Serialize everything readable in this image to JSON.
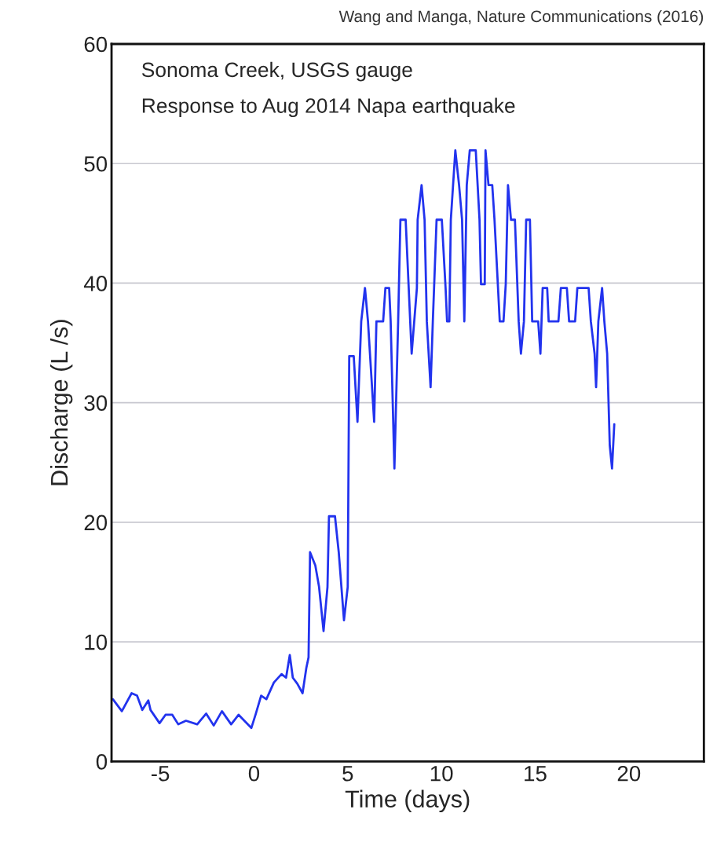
{
  "chart_data": {
    "type": "line",
    "xlabel": "Time (days)",
    "ylabel": "Discharge (L /s)",
    "annotations": [
      "Sonoma Creek, USGS gauge",
      "Response to Aug 2014 Napa earthquake",
      "Wang and Manga, Nature Communications (2016)"
    ],
    "xlim": [
      -7.6,
      24.0
    ],
    "ylim": [
      0,
      60
    ],
    "xticks": [
      -5,
      0,
      5,
      10,
      15,
      20
    ],
    "yticks": [
      0,
      10,
      20,
      30,
      40,
      50,
      60
    ],
    "grid": "y",
    "line_style": "solid",
    "series": [
      {
        "color": "#2233ee",
        "x": [
          -7.53,
          -7.05,
          -6.53,
          -6.24,
          -5.96,
          -5.64,
          -5.52,
          -5.04,
          -4.72,
          -4.36,
          -4.04,
          -3.63,
          -3.03,
          -2.55,
          -2.15,
          -1.71,
          -1.22,
          -0.82,
          -0.14,
          0.1,
          0.38,
          0.66,
          1.06,
          1.47,
          1.71,
          1.91,
          2.07,
          2.31,
          2.59,
          2.79,
          2.91,
          2.99,
          3.27,
          3.47,
          3.71,
          3.92,
          4.0,
          4.32,
          4.52,
          4.8,
          5.0,
          5.08,
          5.32,
          5.52,
          5.72,
          5.92,
          6.08,
          6.41,
          6.53,
          6.89,
          7.01,
          7.21,
          7.29,
          7.49,
          7.69,
          7.81,
          8.09,
          8.41,
          8.69,
          8.73,
          8.94,
          9.1,
          9.22,
          9.42,
          9.54,
          9.74,
          10.02,
          10.22,
          10.3,
          10.42,
          10.5,
          10.62,
          10.74,
          10.94,
          11.1,
          11.22,
          11.35,
          11.51,
          11.83,
          12.03,
          12.11,
          12.31,
          12.35,
          12.51,
          12.71,
          12.83,
          13.11,
          13.31,
          13.43,
          13.55,
          13.71,
          13.92,
          14.12,
          14.24,
          14.4,
          14.52,
          14.72,
          14.84,
          15.16,
          15.28,
          15.4,
          15.64,
          15.72,
          16.24,
          16.37,
          16.69,
          16.81,
          17.13,
          17.25,
          17.85,
          17.97,
          18.17,
          18.25,
          18.37,
          18.57,
          18.69,
          18.84,
          18.98,
          19.1,
          19.22
        ],
        "values": [
          5.2,
          4.2,
          5.7,
          5.5,
          4.3,
          5.1,
          4.3,
          3.2,
          3.9,
          3.9,
          3.1,
          3.4,
          3.1,
          4.0,
          3.0,
          4.2,
          3.1,
          3.9,
          2.8,
          4.0,
          5.5,
          5.2,
          6.6,
          7.3,
          7.0,
          8.9,
          7.0,
          6.5,
          5.7,
          7.8,
          8.7,
          17.5,
          16.4,
          14.6,
          10.9,
          14.6,
          20.5,
          20.5,
          17.5,
          11.8,
          14.6,
          33.9,
          33.9,
          28.4,
          36.8,
          39.6,
          36.8,
          28.4,
          36.8,
          36.8,
          39.6,
          39.6,
          36.8,
          24.5,
          36.8,
          45.3,
          45.3,
          34.1,
          39.6,
          45.3,
          48.2,
          45.3,
          36.8,
          31.3,
          36.8,
          45.3,
          45.3,
          39.6,
          36.8,
          36.8,
          45.3,
          48.2,
          51.1,
          48.2,
          45.3,
          36.8,
          48.2,
          51.1,
          51.1,
          45.3,
          39.9,
          39.9,
          51.1,
          48.2,
          48.2,
          45.3,
          36.8,
          36.8,
          39.9,
          48.2,
          45.3,
          45.3,
          36.8,
          34.1,
          36.8,
          45.3,
          45.3,
          36.8,
          36.8,
          34.1,
          39.6,
          39.6,
          36.8,
          36.8,
          39.6,
          39.6,
          36.8,
          36.8,
          39.6,
          39.6,
          36.8,
          34.1,
          31.3,
          36.8,
          39.6,
          36.8,
          34.1,
          26.4,
          24.5,
          28.2
        ]
      }
    ]
  }
}
